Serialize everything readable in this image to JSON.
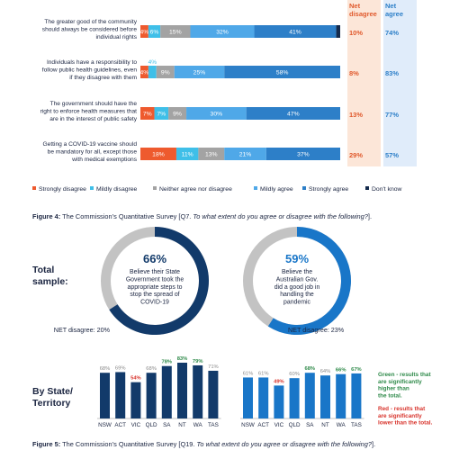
{
  "figure4": {
    "caption_prefix": "Figure 4:",
    "caption_text": " The Commission’s Quantitative Survey [Q7. ",
    "caption_italic": "To what extent do you agree or disagree with the following?",
    "caption_suffix": "]."
  },
  "figure5": {
    "caption_prefix": "Figure 5:",
    "caption_text": " The Commission’s Quantitative Survey [Q19. ",
    "caption_italic": "To what extent do you agree or disagree with the following?",
    "caption_suffix": "]."
  },
  "colors": {
    "strongly_disagree": "#ee5a2e",
    "mildly_disagree": "#3fbfe8",
    "neither": "#a3a3a3",
    "mildly_agree": "#4fa8e8",
    "strongly_agree": "#2d7fc8",
    "dont_know": "#142a4c",
    "net_disagree_bg": "#fce6d8",
    "net_agree_bg": "#e0ecfa",
    "net_disagree_text": "#e0592c",
    "net_agree_text": "#2d7fc8",
    "navy": "#123a6a",
    "blue": "#1976c8",
    "grey_ring": "#c3c3c3",
    "red_text": "#d8342c",
    "green_text": "#2f8a4a"
  },
  "chart_data": [
    {
      "type": "bar",
      "orientation": "horizontal",
      "stacked": true,
      "series_names": [
        "Strongly disagree",
        "Mildly disagree",
        "Neither agree nor disagree",
        "Mildly agree",
        "Strongly agree",
        "Don't know"
      ],
      "net_headers": {
        "disagree": "Net disagree",
        "agree": "Net agree"
      },
      "rows": [
        {
          "label": [
            "The greater good of the community",
            "should always be considered before",
            "individual rights"
          ],
          "values": [
            4,
            6,
            15,
            32,
            41,
            2
          ],
          "shown": [
            "4%",
            "6%",
            "15%",
            "32%",
            "41%",
            ""
          ],
          "net_disagree": "10%",
          "net_agree": "74%"
        },
        {
          "label": [
            "Individuals have a responsibility to",
            "follow public health guidelines, even",
            "if they disagree with them"
          ],
          "values": [
            4,
            4,
            9,
            25,
            58,
            0
          ],
          "shown": [
            "4%",
            "4%",
            "9%",
            "25%",
            "58%",
            ""
          ],
          "net_disagree": "8%",
          "net_agree": "83%"
        },
        {
          "label": [
            "The government should have the",
            "right to enforce health measures that",
            "are in the interest of public safety"
          ],
          "values": [
            7,
            7,
            9,
            30,
            47,
            0
          ],
          "shown": [
            "7%",
            "7%",
            "9%",
            "30%",
            "47%",
            ""
          ],
          "net_disagree": "13%",
          "net_agree": "77%"
        },
        {
          "label": [
            "Getting a COVID-19 vaccine should",
            "be mandatory for all, except those",
            "with medical exemptions"
          ],
          "values": [
            18,
            11,
            13,
            21,
            37,
            0
          ],
          "shown": [
            "18%",
            "11%",
            "13%",
            "21%",
            "37%",
            ""
          ],
          "net_disagree": "29%",
          "net_agree": "57%"
        }
      ],
      "legend": [
        "Strongly disagree",
        "Mildly disagree",
        "Neither agree nor disagree",
        "Mildly agree",
        "Strongly agree",
        "Don't know"
      ]
    },
    {
      "type": "pie",
      "section_label": [
        "Total",
        "sample:"
      ],
      "donuts": [
        {
          "value": 66,
          "value_label": "66%",
          "text": [
            "Believe their State",
            "Government took the",
            "appropriate steps to",
            "stop the spread of",
            "COVID-19"
          ],
          "net_disagree_label": "NET disagree: 20%"
        },
        {
          "value": 59,
          "value_label": "59%",
          "text": [
            "Believe the",
            "Australian Gov.",
            "did a good job in",
            "handling the",
            "pandemic"
          ],
          "net_disagree_label": "NET disagree: 23%"
        }
      ]
    },
    {
      "type": "bar",
      "section_label": [
        "By State/",
        "Territory"
      ],
      "categories": [
        "NSW",
        "ACT",
        "VIC",
        "QLD",
        "SA",
        "NT",
        "WA",
        "TAS"
      ],
      "series": [
        {
          "values": [
            68,
            69,
            54,
            68,
            78,
            83,
            79,
            71
          ],
          "labels": [
            "68%",
            "69%",
            "54%",
            "68%",
            "78%",
            "83%",
            "79%",
            "71%"
          ],
          "significance": [
            "none",
            "none",
            "lower",
            "none",
            "higher",
            "higher",
            "higher",
            "none"
          ]
        },
        {
          "values": [
            61,
            61,
            49,
            60,
            68,
            64,
            66,
            67
          ],
          "labels": [
            "61%",
            "61%",
            "49%",
            "60%",
            "68%",
            "64%",
            "66%",
            "67%"
          ],
          "significance": [
            "none",
            "none",
            "lower",
            "none",
            "higher",
            "none",
            "higher",
            "higher"
          ]
        }
      ],
      "notes": [
        {
          "kind": "green",
          "lines": [
            "Green - results that",
            "are significantly",
            "higher than",
            "the total."
          ]
        },
        {
          "kind": "red",
          "lines": [
            "Red - results that",
            "are significantly",
            "lower than the total."
          ]
        }
      ]
    }
  ]
}
